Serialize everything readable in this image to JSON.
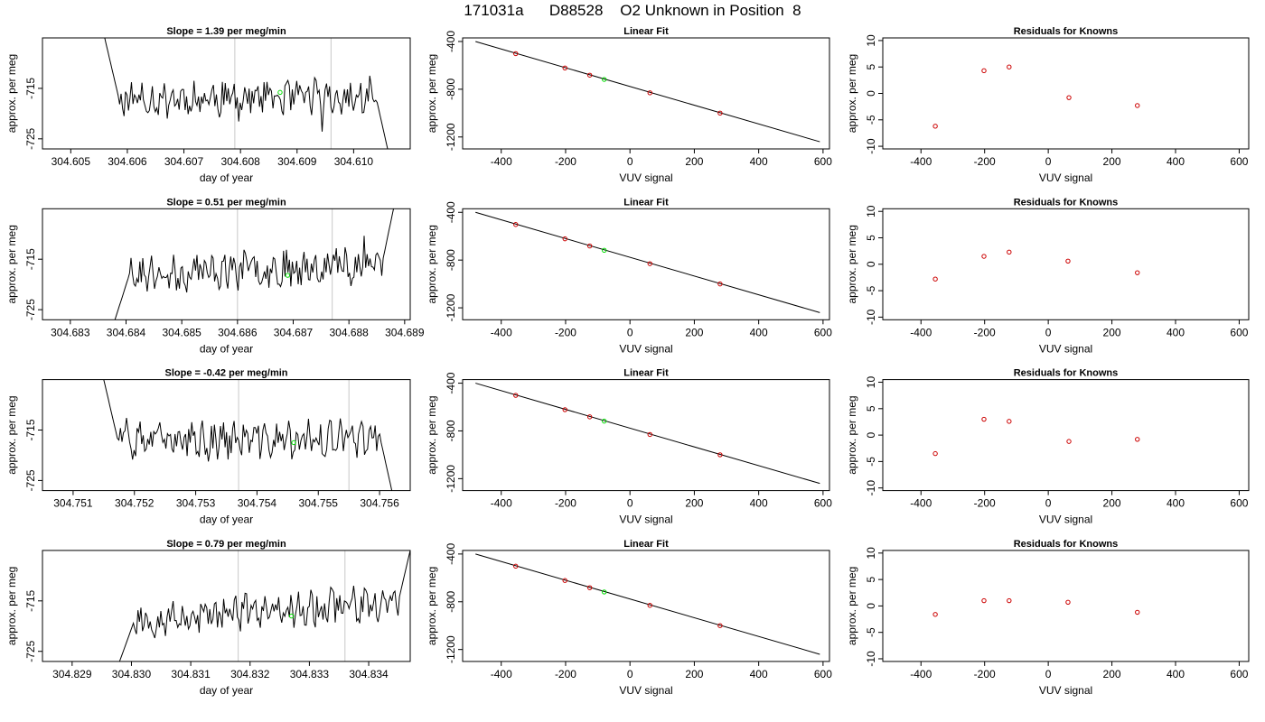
{
  "title": "171031a      D88528    O2 Unknown in Position  8",
  "chart_data": [
    {
      "type": "line",
      "panel": "time-series",
      "row": 0,
      "title": "Slope =  1.39  per meg/min",
      "xlabel": "day of year",
      "ylabel": "approx. per meg",
      "xlim": [
        304.6045,
        304.611
      ],
      "ylim": [
        -727,
        -705
      ],
      "xticks": [
        "304.605",
        "304.606",
        "304.607",
        "304.608",
        "304.609",
        "304.610"
      ],
      "yticks": [
        -715,
        -725
      ],
      "vlines": [
        304.6079,
        304.6096
      ],
      "marker": {
        "x": 304.6087,
        "y": -715.8
      },
      "x_start": 304.6056,
      "x_end": 304.6106,
      "seed": 11,
      "start_y": -705,
      "end_y": -727,
      "drift": 0
    },
    {
      "type": "scatter",
      "panel": "linear-fit",
      "row": 0,
      "title": "Linear Fit",
      "xlabel": "VUV signal",
      "ylabel": "approx. per meg",
      "xlim": [
        -520,
        620
      ],
      "ylim": [
        -1300,
        -370
      ],
      "xticks": [
        -400,
        -200,
        0,
        200,
        400,
        600
      ],
      "yticks": [
        -400,
        -800,
        -1200
      ],
      "line": {
        "x0": -480,
        "y0": -400,
        "x1": 590,
        "y1": -1240
      },
      "knowns": [
        {
          "x": -355,
          "y": -502
        },
        {
          "x": -202,
          "y": -622
        },
        {
          "x": -125,
          "y": -682
        },
        {
          "x": 62,
          "y": -830
        },
        {
          "x": 280,
          "y": -1000
        }
      ],
      "unknown": {
        "x": -80,
        "y": -718
      }
    },
    {
      "type": "scatter",
      "panel": "residuals",
      "row": 0,
      "title": "Residuals for Knowns",
      "xlabel": "VUV signal",
      "ylabel": "approx. per meg",
      "xlim": [
        -520,
        630
      ],
      "ylim": [
        -10.5,
        10.5
      ],
      "xticks": [
        -400,
        -200,
        0,
        200,
        400,
        600
      ],
      "yticks": [
        10,
        5,
        0,
        -5,
        -10
      ],
      "points": [
        {
          "x": -355,
          "y": -6.2
        },
        {
          "x": -202,
          "y": 4.3
        },
        {
          "x": -123,
          "y": 5.0
        },
        {
          "x": 65,
          "y": -0.8
        },
        {
          "x": 280,
          "y": -2.3
        }
      ]
    },
    {
      "type": "line",
      "panel": "time-series",
      "row": 1,
      "title": "Slope =  0.51  per meg/min",
      "xlabel": "day of year",
      "ylabel": "approx. per meg",
      "xlim": [
        304.6825,
        304.6891
      ],
      "ylim": [
        -727,
        -705
      ],
      "xticks": [
        "304.683",
        "304.684",
        "304.685",
        "304.686",
        "304.687",
        "304.688",
        "304.689"
      ],
      "yticks": [
        -715,
        -725
      ],
      "vlines": [
        304.686,
        304.6877
      ],
      "marker": {
        "x": 304.6869,
        "y": -718.2
      },
      "x_start": 304.6838,
      "x_end": 304.6888,
      "seed": 23,
      "start_y": -727,
      "end_y": -705,
      "drift": 1.5
    },
    {
      "type": "scatter",
      "panel": "linear-fit",
      "row": 1,
      "title": "Linear Fit",
      "xlabel": "VUV signal",
      "ylabel": "approx. per meg",
      "xlim": [
        -520,
        620
      ],
      "ylim": [
        -1300,
        -370
      ],
      "xticks": [
        -400,
        -200,
        0,
        200,
        400,
        600
      ],
      "yticks": [
        -400,
        -800,
        -1200
      ],
      "line": {
        "x0": -480,
        "y0": -400,
        "x1": 590,
        "y1": -1240
      },
      "knowns": [
        {
          "x": -355,
          "y": -502
        },
        {
          "x": -202,
          "y": -622
        },
        {
          "x": -125,
          "y": -682
        },
        {
          "x": 62,
          "y": -830
        },
        {
          "x": 280,
          "y": -1000
        }
      ],
      "unknown": {
        "x": -80,
        "y": -718
      }
    },
    {
      "type": "scatter",
      "panel": "residuals",
      "row": 1,
      "title": "Residuals for Knowns",
      "xlabel": "VUV signal",
      "ylabel": "approx. per meg",
      "xlim": [
        -520,
        630
      ],
      "ylim": [
        -10.5,
        10.5
      ],
      "xticks": [
        -400,
        -200,
        0,
        200,
        400,
        600
      ],
      "yticks": [
        10,
        5,
        0,
        -5,
        -10
      ],
      "points": [
        {
          "x": -355,
          "y": -2.8
        },
        {
          "x": -202,
          "y": 1.5
        },
        {
          "x": -123,
          "y": 2.3
        },
        {
          "x": 62,
          "y": 0.6
        },
        {
          "x": 280,
          "y": -1.6
        }
      ]
    },
    {
      "type": "line",
      "panel": "time-series",
      "row": 2,
      "title": "Slope =  -0.42  per meg/min",
      "xlabel": "day of year",
      "ylabel": "approx. per meg",
      "xlim": [
        304.7505,
        304.7565
      ],
      "ylim": [
        -727,
        -705
      ],
      "xticks": [
        "304.751",
        "304.752",
        "304.753",
        "304.754",
        "304.755",
        "304.756"
      ],
      "yticks": [
        -715,
        -725
      ],
      "vlines": [
        304.7537,
        304.7555
      ],
      "marker": {
        "x": 304.7546,
        "y": -717.5
      },
      "x_start": 304.7515,
      "x_end": 304.7562,
      "seed": 37,
      "start_y": -705,
      "end_y": -727,
      "drift": 0.3
    },
    {
      "type": "scatter",
      "panel": "linear-fit",
      "row": 2,
      "title": "Linear Fit",
      "xlabel": "VUV signal",
      "ylabel": "approx. per meg",
      "xlim": [
        -520,
        620
      ],
      "ylim": [
        -1300,
        -370
      ],
      "xticks": [
        -400,
        -200,
        0,
        200,
        400,
        600
      ],
      "yticks": [
        -400,
        -800,
        -1200
      ],
      "line": {
        "x0": -480,
        "y0": -400,
        "x1": 590,
        "y1": -1240
      },
      "knowns": [
        {
          "x": -355,
          "y": -502
        },
        {
          "x": -202,
          "y": -622
        },
        {
          "x": -125,
          "y": -682
        },
        {
          "x": 62,
          "y": -830
        },
        {
          "x": 280,
          "y": -1000
        }
      ],
      "unknown": {
        "x": -80,
        "y": -718
      }
    },
    {
      "type": "scatter",
      "panel": "residuals",
      "row": 2,
      "title": "Residuals for Knowns",
      "xlabel": "VUV signal",
      "ylabel": "approx. per meg",
      "xlim": [
        -520,
        630
      ],
      "ylim": [
        -10.5,
        10.5
      ],
      "xticks": [
        -400,
        -200,
        0,
        200,
        400,
        600
      ],
      "yticks": [
        10,
        5,
        0,
        -5,
        -10
      ],
      "points": [
        {
          "x": -355,
          "y": -3.5
        },
        {
          "x": -202,
          "y": 3.0
        },
        {
          "x": -123,
          "y": 2.6
        },
        {
          "x": 65,
          "y": -1.2
        },
        {
          "x": 280,
          "y": -0.8
        }
      ]
    },
    {
      "type": "line",
      "panel": "time-series",
      "row": 3,
      "title": "Slope =  0.79  per meg/min",
      "xlabel": "day of year",
      "ylabel": "approx. per meg",
      "xlim": [
        304.8285,
        304.8347
      ],
      "ylim": [
        -727,
        -705
      ],
      "xticks": [
        "304.829",
        "304.830",
        "304.831",
        "304.832",
        "304.833",
        "304.834"
      ],
      "yticks": [
        -715,
        -725
      ],
      "vlines": [
        304.8318,
        304.8336
      ],
      "marker": {
        "x": 304.8327,
        "y": -718.0
      },
      "x_start": 304.8298,
      "x_end": 304.8347,
      "seed": 53,
      "start_y": -727,
      "end_y": -705,
      "drift": 2.2
    },
    {
      "type": "scatter",
      "panel": "linear-fit",
      "row": 3,
      "title": "Linear Fit",
      "xlabel": "VUV signal",
      "ylabel": "approx. per meg",
      "xlim": [
        -520,
        620
      ],
      "ylim": [
        -1300,
        -370
      ],
      "xticks": [
        -400,
        -200,
        0,
        200,
        400,
        600
      ],
      "yticks": [
        -400,
        -800,
        -1200
      ],
      "line": {
        "x0": -480,
        "y0": -400,
        "x1": 590,
        "y1": -1240
      },
      "knowns": [
        {
          "x": -355,
          "y": -502
        },
        {
          "x": -202,
          "y": -622
        },
        {
          "x": -125,
          "y": -682
        },
        {
          "x": 62,
          "y": -830
        },
        {
          "x": 280,
          "y": -1000
        }
      ],
      "unknown": {
        "x": -80,
        "y": -718
      }
    },
    {
      "type": "scatter",
      "panel": "residuals",
      "row": 3,
      "title": "Residuals for Knowns",
      "xlabel": "VUV signal",
      "ylabel": "approx. per meg",
      "xlim": [
        -520,
        630
      ],
      "ylim": [
        -10.5,
        10.5
      ],
      "xticks": [
        -400,
        -200,
        0,
        200,
        400,
        600
      ],
      "yticks": [
        10,
        5,
        0,
        -5,
        -10
      ],
      "points": [
        {
          "x": -355,
          "y": -1.6
        },
        {
          "x": -202,
          "y": 1.0
        },
        {
          "x": -123,
          "y": 1.0
        },
        {
          "x": 62,
          "y": 0.7
        },
        {
          "x": 280,
          "y": -1.2
        }
      ]
    }
  ],
  "colors": {
    "series_line": "#000000",
    "known_points": "#cc0000",
    "unknown_point": "#00dd00",
    "vline": "#c8c8c8",
    "axes": "#000000"
  }
}
